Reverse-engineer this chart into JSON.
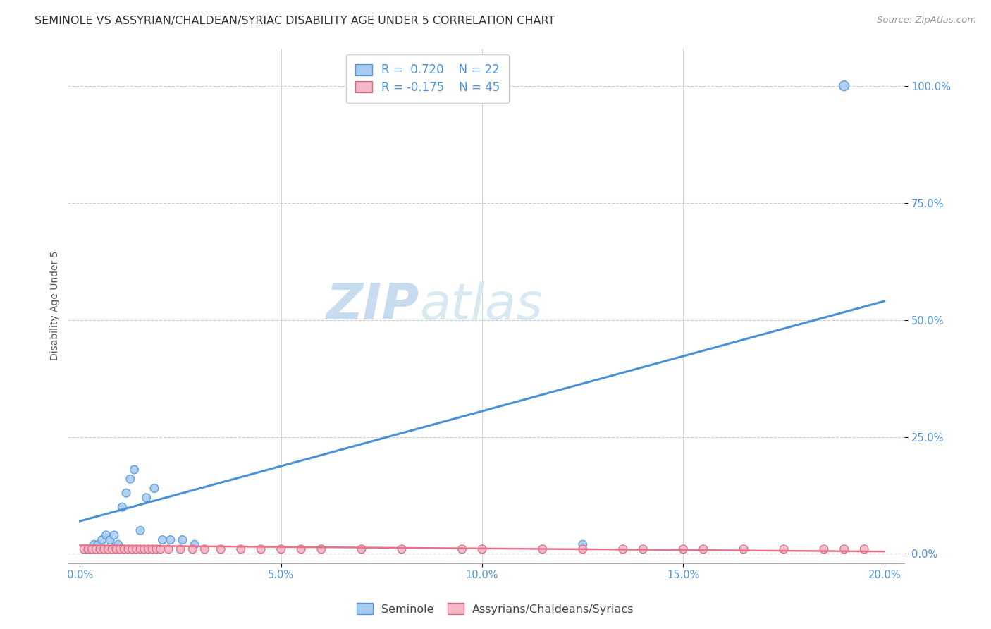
{
  "title": "SEMINOLE VS ASSYRIAN/CHALDEAN/SYRIAC DISABILITY AGE UNDER 5 CORRELATION CHART",
  "source": "Source: ZipAtlas.com",
  "ylabel": "Disability Age Under 5",
  "xlabel_ticks": [
    "0.0%",
    "5.0%",
    "10.0%",
    "15.0%",
    "20.0%"
  ],
  "xlabel_vals": [
    0,
    5,
    10,
    15,
    20
  ],
  "ylabel_ticks": [
    "0.0%",
    "25.0%",
    "50.0%",
    "75.0%",
    "100.0%"
  ],
  "ylabel_vals": [
    0,
    25,
    50,
    75,
    100
  ],
  "xlim": [
    -0.3,
    20.5
  ],
  "ylim": [
    -2,
    108
  ],
  "watermark_zip": "ZIP",
  "watermark_atlas": "atlas",
  "blue_color": "#A8CCF0",
  "pink_color": "#F5B8C8",
  "blue_line_color": "#4A90D9",
  "pink_line_color": "#E8708A",
  "blue_edge_color": "#5599DD",
  "pink_edge_color": "#DD6680",
  "seminole_x": [
    0.15,
    0.25,
    0.35,
    0.45,
    0.55,
    0.65,
    0.75,
    0.85,
    0.95,
    1.05,
    1.15,
    1.25,
    1.35,
    1.5,
    1.65,
    1.85,
    2.05,
    2.25,
    2.55,
    2.85,
    12.5,
    19.0
  ],
  "seminole_y": [
    1,
    1,
    2,
    2,
    3,
    4,
    3,
    4,
    2,
    10,
    13,
    16,
    18,
    5,
    12,
    14,
    3,
    3,
    3,
    2,
    2,
    100
  ],
  "seminole_size": [
    70,
    70,
    70,
    70,
    70,
    70,
    70,
    70,
    70,
    70,
    70,
    70,
    70,
    70,
    70,
    70,
    70,
    70,
    70,
    70,
    70,
    100
  ],
  "assyrian_x": [
    0.1,
    0.2,
    0.3,
    0.4,
    0.5,
    0.6,
    0.7,
    0.8,
    0.9,
    1.0,
    1.1,
    1.2,
    1.3,
    1.4,
    1.5,
    1.6,
    1.7,
    1.8,
    1.9,
    2.0,
    2.2,
    2.5,
    2.8,
    3.1,
    3.5,
    4.0,
    4.5,
    5.0,
    5.5,
    6.0,
    7.0,
    8.0,
    9.5,
    10.0,
    11.5,
    12.5,
    13.5,
    14.0,
    15.0,
    15.5,
    16.5,
    17.5,
    18.5,
    19.0,
    19.5
  ],
  "assyrian_y": [
    1,
    1,
    1,
    1,
    1,
    1,
    1,
    1,
    1,
    1,
    1,
    1,
    1,
    1,
    1,
    1,
    1,
    1,
    1,
    1,
    1,
    1,
    1,
    1,
    1,
    1,
    1,
    1,
    1,
    1,
    1,
    1,
    1,
    1,
    1,
    1,
    1,
    1,
    1,
    1,
    1,
    1,
    1,
    1,
    1
  ],
  "assyrian_size": [
    70,
    70,
    70,
    70,
    70,
    70,
    70,
    70,
    70,
    70,
    70,
    70,
    70,
    70,
    70,
    70,
    70,
    70,
    70,
    70,
    70,
    70,
    70,
    70,
    70,
    70,
    70,
    70,
    70,
    70,
    70,
    70,
    70,
    70,
    70,
    70,
    70,
    70,
    70,
    70,
    70,
    70,
    70,
    70,
    70
  ],
  "blue_trend_x": [
    0,
    20
  ],
  "blue_trend_y": [
    7,
    54
  ],
  "pink_trend_x": [
    0,
    20
  ],
  "pink_trend_y": [
    1.8,
    0.5
  ],
  "grid_color": "#CCCCCC",
  "bg_color": "#FFFFFF",
  "title_fontsize": 11.5,
  "axis_label_fontsize": 10,
  "tick_fontsize": 10.5,
  "watermark_fontsize_zip": 52,
  "watermark_fontsize_atlas": 52,
  "watermark_color_zip": "#C8DCF0",
  "watermark_color_atlas": "#D8E8F0",
  "source_fontsize": 9.5
}
